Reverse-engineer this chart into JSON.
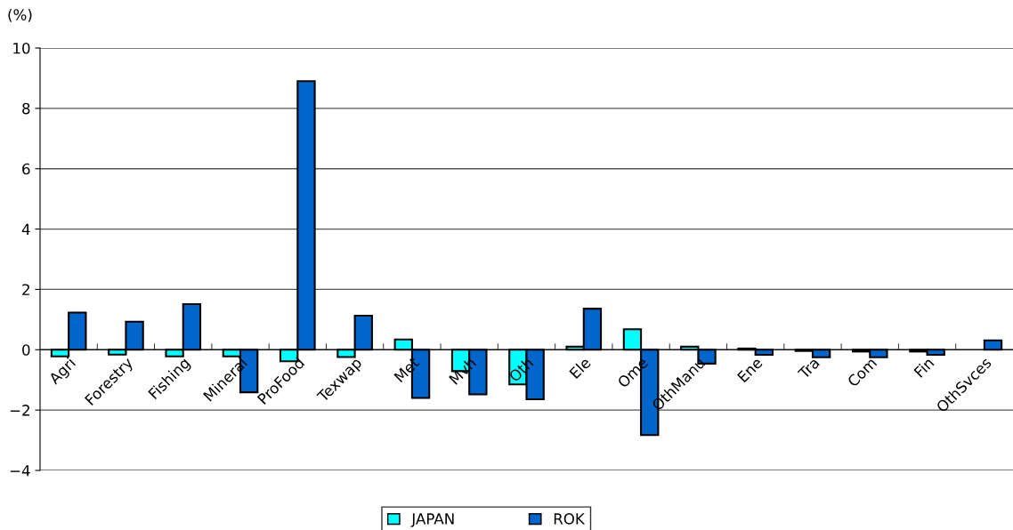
{
  "chart_data": {
    "type": "bar",
    "ylabel": "(%)",
    "categories": [
      "Agri",
      "Forestry",
      "Fishing",
      "Mineral",
      "ProFood",
      "Texwap",
      "Met",
      "Mvh",
      "Oth",
      "Ele",
      "Ome",
      "OthManu",
      "Ene",
      "Tra",
      "Com",
      "Fin",
      "OthSvces"
    ],
    "series": [
      {
        "name": "JAPAN",
        "color": "#00ffff",
        "values": [
          -0.22,
          -0.16,
          -0.22,
          -0.22,
          -0.38,
          -0.24,
          0.34,
          -0.71,
          -1.15,
          0.1,
          0.68,
          0.1,
          0.04,
          -0.04,
          -0.06,
          -0.06,
          null
        ]
      },
      {
        "name": "ROK",
        "color": "#0066cc",
        "values": [
          1.23,
          0.93,
          1.51,
          -1.41,
          8.9,
          1.13,
          -1.6,
          -1.48,
          -1.64,
          1.36,
          -2.83,
          -0.46,
          -0.17,
          -0.25,
          -0.25,
          -0.17,
          0.31
        ]
      }
    ],
    "ylim": [
      -4,
      10
    ],
    "yticks": [
      {
        "value": -4,
        "label": "−4"
      },
      {
        "value": -2,
        "label": "−2"
      },
      0,
      2,
      4,
      6,
      8,
      10
    ],
    "grid": "y",
    "legend": "bottom"
  }
}
